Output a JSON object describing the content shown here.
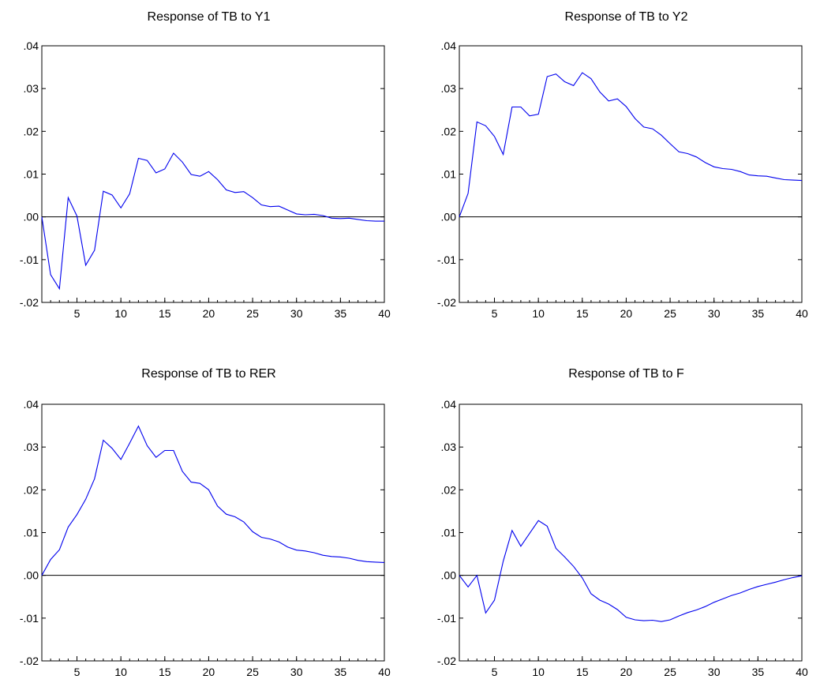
{
  "chart_data": [
    {
      "type": "line",
      "title": "Response of TB to Y1",
      "xlabel": "",
      "ylabel": "",
      "xlim": [
        1,
        40
      ],
      "ylim": [
        -0.02,
        0.04
      ],
      "yticks": [
        ".04",
        ".03",
        ".02",
        ".01",
        ".00",
        "-.01",
        "-.02"
      ],
      "xticks": [
        "5",
        "10",
        "15",
        "20",
        "25",
        "30",
        "35",
        "40"
      ],
      "grid": false,
      "zero_line": true,
      "color": "#0000ee",
      "x": [
        1,
        2,
        3,
        4,
        5,
        6,
        7,
        8,
        9,
        10,
        11,
        12,
        13,
        14,
        15,
        16,
        17,
        18,
        19,
        20,
        21,
        22,
        23,
        24,
        25,
        26,
        27,
        28,
        29,
        30,
        31,
        32,
        33,
        34,
        35,
        36,
        37,
        38,
        39,
        40
      ],
      "values": [
        0.0,
        -0.0135,
        -0.0168,
        0.0045,
        0.0002,
        -0.0113,
        -0.0078,
        0.006,
        0.0051,
        0.0021,
        0.0054,
        0.0137,
        0.0132,
        0.0103,
        0.0112,
        0.0149,
        0.0128,
        0.0099,
        0.0095,
        0.0106,
        0.0087,
        0.0063,
        0.0057,
        0.0059,
        0.0045,
        0.0028,
        0.0024,
        0.0025,
        0.0016,
        0.0007,
        0.0005,
        0.0006,
        0.0003,
        -0.0003,
        -0.0004,
        -0.0003,
        -0.0006,
        -0.0009,
        -0.001,
        -0.001
      ]
    },
    {
      "type": "line",
      "title": "Response of TB to Y2",
      "xlabel": "",
      "ylabel": "",
      "xlim": [
        1,
        40
      ],
      "ylim": [
        -0.02,
        0.04
      ],
      "yticks": [
        ".04",
        ".03",
        ".02",
        ".01",
        ".00",
        "-.01",
        "-.02"
      ],
      "xticks": [
        "5",
        "10",
        "15",
        "20",
        "25",
        "30",
        "35",
        "40"
      ],
      "grid": false,
      "zero_line": true,
      "color": "#0000ee",
      "x": [
        1,
        2,
        3,
        4,
        5,
        6,
        7,
        8,
        9,
        10,
        11,
        12,
        13,
        14,
        15,
        16,
        17,
        18,
        19,
        20,
        21,
        22,
        23,
        24,
        25,
        26,
        27,
        28,
        29,
        30,
        31,
        32,
        33,
        34,
        35,
        36,
        37,
        38,
        39,
        40
      ],
      "values": [
        0.0,
        0.0055,
        0.0222,
        0.0213,
        0.0188,
        0.0146,
        0.0257,
        0.0257,
        0.0236,
        0.024,
        0.0328,
        0.0334,
        0.0316,
        0.0307,
        0.0337,
        0.0323,
        0.0292,
        0.0271,
        0.0276,
        0.0258,
        0.023,
        0.021,
        0.0206,
        0.0191,
        0.0171,
        0.0152,
        0.0148,
        0.014,
        0.0127,
        0.0117,
        0.0113,
        0.0111,
        0.0106,
        0.0098,
        0.0096,
        0.0095,
        0.0091,
        0.0087,
        0.0086,
        0.0085
      ]
    },
    {
      "type": "line",
      "title": "Response of TB to RER",
      "xlabel": "",
      "ylabel": "",
      "xlim": [
        1,
        40
      ],
      "ylim": [
        -0.02,
        0.04
      ],
      "yticks": [
        ".04",
        ".03",
        ".02",
        ".01",
        ".00",
        "-.01",
        "-.02"
      ],
      "xticks": [
        "5",
        "10",
        "15",
        "20",
        "25",
        "30",
        "35",
        "40"
      ],
      "grid": false,
      "zero_line": true,
      "color": "#0000ee",
      "x": [
        1,
        2,
        3,
        4,
        5,
        6,
        7,
        8,
        9,
        10,
        11,
        12,
        13,
        14,
        15,
        16,
        17,
        18,
        19,
        20,
        21,
        22,
        23,
        24,
        25,
        26,
        27,
        28,
        29,
        30,
        31,
        32,
        33,
        34,
        35,
        36,
        37,
        38,
        39,
        40
      ],
      "values": [
        0.0,
        0.0037,
        0.006,
        0.0113,
        0.0142,
        0.0178,
        0.0226,
        0.0316,
        0.0297,
        0.0271,
        0.0309,
        0.0349,
        0.0303,
        0.0276,
        0.0292,
        0.0292,
        0.0243,
        0.0218,
        0.0215,
        0.02,
        0.0162,
        0.0143,
        0.0137,
        0.0125,
        0.0102,
        0.0089,
        0.0085,
        0.0078,
        0.0066,
        0.0059,
        0.0057,
        0.0053,
        0.0047,
        0.0044,
        0.0043,
        0.004,
        0.0035,
        0.0032,
        0.0031,
        0.003
      ]
    },
    {
      "type": "line",
      "title": "Response of TB to F",
      "xlabel": "",
      "ylabel": "",
      "xlim": [
        1,
        40
      ],
      "ylim": [
        -0.02,
        0.04
      ],
      "yticks": [
        ".04",
        ".03",
        ".02",
        ".01",
        ".00",
        "-.01",
        "-.02"
      ],
      "xticks": [
        "5",
        "10",
        "15",
        "20",
        "25",
        "30",
        "35",
        "40"
      ],
      "grid": false,
      "zero_line": true,
      "color": "#0000ee",
      "x": [
        1,
        2,
        3,
        4,
        5,
        6,
        7,
        8,
        9,
        10,
        11,
        12,
        13,
        14,
        15,
        16,
        17,
        18,
        19,
        20,
        21,
        22,
        23,
        24,
        25,
        26,
        27,
        28,
        29,
        30,
        31,
        32,
        33,
        34,
        35,
        36,
        37,
        38,
        39,
        40
      ],
      "values": [
        0.0,
        -0.0027,
        0.0,
        -0.0088,
        -0.0058,
        0.0033,
        0.0105,
        0.0068,
        0.0098,
        0.0128,
        0.0115,
        0.0063,
        0.0043,
        0.0021,
        -0.0006,
        -0.0043,
        -0.0058,
        -0.0067,
        -0.008,
        -0.0098,
        -0.0104,
        -0.0106,
        -0.0105,
        -0.0108,
        -0.0104,
        -0.0095,
        -0.0087,
        -0.0081,
        -0.0073,
        -0.0063,
        -0.0055,
        -0.0047,
        -0.0041,
        -0.0033,
        -0.0026,
        -0.0021,
        -0.0016,
        -0.001,
        -0.0005,
        -0.0001
      ]
    }
  ]
}
